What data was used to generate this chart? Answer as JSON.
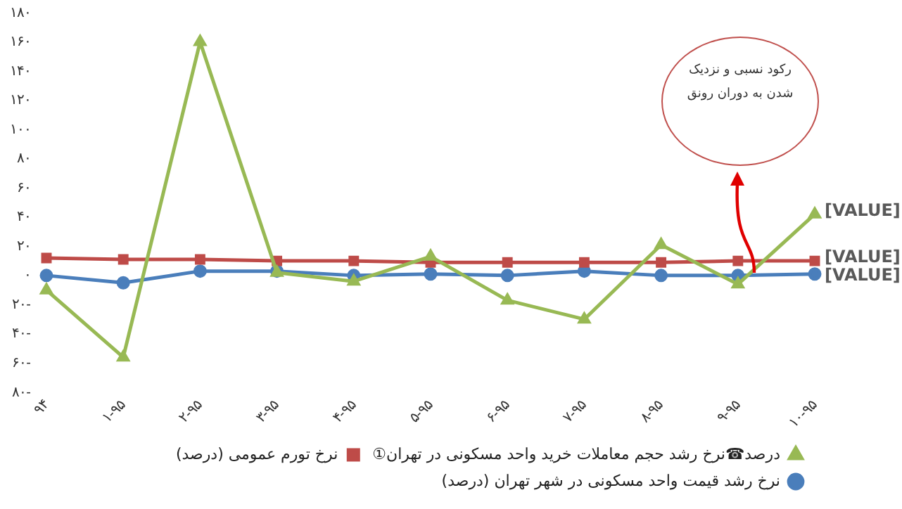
{
  "chart_data": {
    "type": "line",
    "categories": [
      "۹۴",
      "۱-۹۵",
      "۲-۹۵",
      "۳-۹۵",
      "۴-۹۵",
      "۵-۹۵",
      "۶-۹۵",
      "۷-۹۵",
      "۸-۹۵",
      "۹-۹۵",
      "۱۰-۹۵"
    ],
    "series": [
      {
        "name": "نرخ رشد قیمت واحد مسکونی در شهر تهران (درصد)",
        "color": "#4a7ebb",
        "marker": "circle",
        "values": [
          0,
          -5,
          3,
          3,
          0,
          1,
          0,
          3,
          0,
          0,
          1
        ],
        "value_labels": [
          null,
          null,
          null,
          null,
          null,
          null,
          null,
          null,
          null,
          null,
          "[VALUE]"
        ]
      },
      {
        "name": "نرخ تورم عمومی (درصد)",
        "color": "#be4b48",
        "marker": "square",
        "values": [
          12,
          11,
          11,
          10,
          10,
          9,
          9,
          9,
          9,
          10,
          10
        ],
        "value_labels": [
          null,
          null,
          null,
          null,
          null,
          null,
          null,
          null,
          null,
          null,
          "[VALUE]"
        ]
      },
      {
        "name": "①درصد☎نرخ رشد حجم معاملات خرید واحد مسکونی در تهران",
        "color": "#98b954",
        "marker": "triangle",
        "values": [
          -10,
          -56,
          160,
          2,
          -4,
          13,
          -17,
          -30,
          21,
          -6,
          42
        ],
        "value_labels": [
          null,
          null,
          null,
          null,
          null,
          null,
          null,
          null,
          null,
          null,
          "[VALUE]"
        ]
      }
    ],
    "ylim": [
      -80,
      180
    ],
    "yticks": [
      {
        "value": -80,
        "label": "۸۰-"
      },
      {
        "value": -60,
        "label": "۶۰-"
      },
      {
        "value": -40,
        "label": "۴۰-"
      },
      {
        "value": -20,
        "label": "۲۰-"
      },
      {
        "value": 0,
        "label": "۰"
      },
      {
        "value": 20,
        "label": "۲۰"
      },
      {
        "value": 40,
        "label": "۴۰"
      },
      {
        "value": 60,
        "label": "۶۰"
      },
      {
        "value": 80,
        "label": "۸۰"
      },
      {
        "value": 100,
        "label": "۱۰۰"
      },
      {
        "value": 120,
        "label": "۱۲۰"
      },
      {
        "value": 140,
        "label": "۱۴۰"
      },
      {
        "value": 160,
        "label": "۱۶۰"
      },
      {
        "value": 180,
        "label": "۱۸۰"
      }
    ],
    "grid": false,
    "legend": "bottom",
    "annotations": [
      "رکود نسبی و نزدیک شدن به دوران رونق"
    ]
  }
}
